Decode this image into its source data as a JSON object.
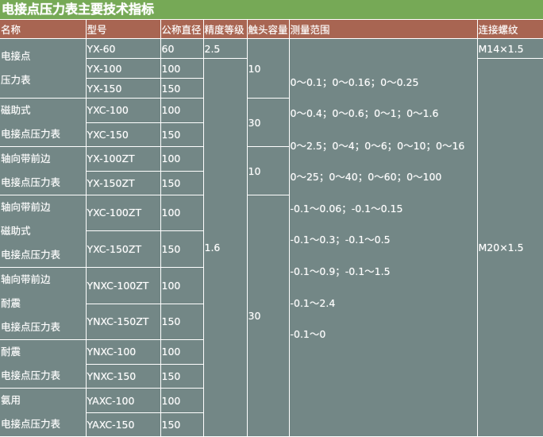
{
  "title": "电接点压力表主要技术指标",
  "headers": [
    "名称",
    "型号",
    "公称直径",
    "精度等级",
    "触头容量",
    "测量范围",
    "连接螺纹"
  ],
  "groups": [
    [
      "电接点",
      "压力表"
    ],
    [
      "磁助式",
      "电接点压力表"
    ],
    [
      "轴向带前边",
      "电接点压力表"
    ],
    [
      "轴向带前边",
      "磁助式",
      "电接点压力表"
    ],
    [
      "轴向带前边",
      "耐震",
      "电接点压力表"
    ],
    [
      "耐震",
      "电接点压力表"
    ],
    [
      "氨用",
      "电接点压力表"
    ]
  ],
  "rows": [
    {
      "model": "YX-60",
      "dia": "60"
    },
    {
      "model": "YX-100",
      "dia": "100"
    },
    {
      "model": "YX-150",
      "dia": "150"
    },
    {
      "model": "YXC-100",
      "dia": "100"
    },
    {
      "model": "YXC-150",
      "dia": "150"
    },
    {
      "model": "YX-100ZT",
      "dia": "100"
    },
    {
      "model": "YX-150ZT",
      "dia": "150"
    },
    {
      "model": "YXC-100ZT",
      "dia": "100"
    },
    {
      "model": "YXC-150ZT",
      "dia": "150"
    },
    {
      "model": "YNXC-100ZT",
      "dia": "100"
    },
    {
      "model": "YNXC-150ZT",
      "dia": "150"
    },
    {
      "model": "YNXC-100",
      "dia": "100"
    },
    {
      "model": "YNXC-150",
      "dia": "150"
    },
    {
      "model": "YAXC-100",
      "dia": "100"
    },
    {
      "model": "YAXC-150",
      "dia": "150"
    }
  ],
  "accuracy": [
    "2.5",
    "1.6"
  ],
  "contact": [
    "10",
    "30",
    "10",
    "30"
  ],
  "ranges": [
    "0～0.1；0～0.16；0～0.25",
    "0～0.4；0～0.6；0～1；0～1.6",
    "0～2.5；0～4；0～6；0～10；0～16",
    "0～25；0～40；0～60；0～100",
    "-0.1～0.06；-0.1～0.15",
    "-0.1～0.3；-0.1～0.5",
    "-0.1～0.9；-0.1～1.5",
    "-0.1～2.4",
    "-0.1～0"
  ],
  "threads": [
    "M14×1.5",
    "M20×1.5"
  ],
  "colors": {
    "title_bg": "#76a956",
    "header_bg": "#a86552",
    "body_bg": "#738786"
  }
}
